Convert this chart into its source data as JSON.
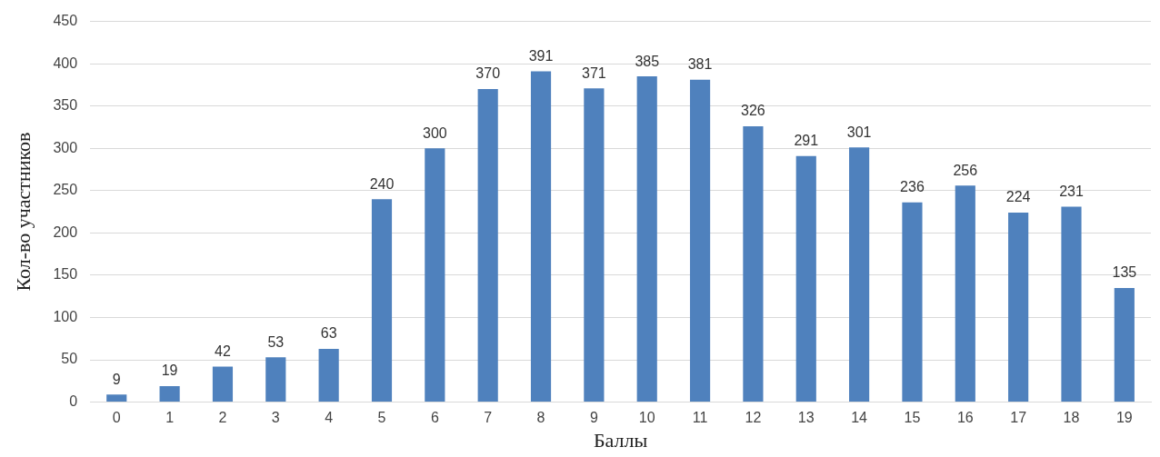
{
  "chart_data": {
    "type": "bar",
    "xlabel": "Баллы",
    "ylabel": "Кол-во участников",
    "categories": [
      "0",
      "1",
      "2",
      "3",
      "4",
      "5",
      "6",
      "7",
      "8",
      "9",
      "10",
      "11",
      "12",
      "13",
      "14",
      "15",
      "16",
      "17",
      "18",
      "19"
    ],
    "values": [
      9,
      19,
      42,
      53,
      63,
      240,
      300,
      370,
      391,
      371,
      385,
      381,
      326,
      291,
      301,
      236,
      256,
      224,
      231,
      135
    ],
    "color": "#4f81bd",
    "ylim": [
      0,
      450
    ],
    "yticks": [
      0,
      50,
      100,
      150,
      200,
      250,
      300,
      350,
      400,
      450
    ],
    "grid": "y",
    "data_labels": true
  }
}
